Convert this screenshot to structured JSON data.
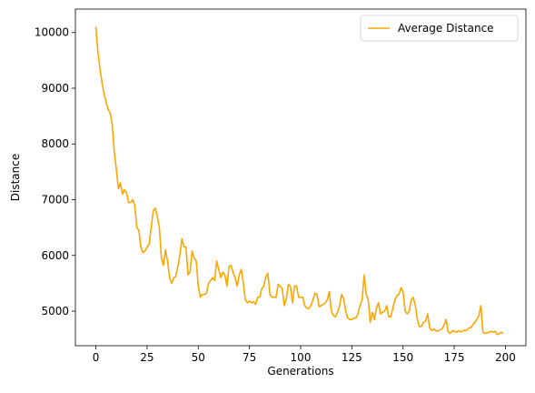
{
  "chart_data": {
    "type": "line",
    "title": "",
    "xlabel": "Generations",
    "ylabel": "Distance",
    "xlim": [
      -10,
      210
    ],
    "ylim": [
      4380,
      10420
    ],
    "xticks": [
      0,
      25,
      50,
      75,
      100,
      125,
      150,
      175,
      200
    ],
    "yticks": [
      5000,
      6000,
      7000,
      8000,
      9000,
      10000
    ],
    "grid": false,
    "legend": {
      "position": "top-right"
    },
    "series": [
      {
        "name": "Average Distance",
        "color": "#FFA500",
        "points": [
          [
            0,
            10100
          ],
          [
            1,
            9650
          ],
          [
            2,
            9350
          ],
          [
            3,
            9100
          ],
          [
            4,
            8900
          ],
          [
            5,
            8750
          ],
          [
            6,
            8620
          ],
          [
            7,
            8550
          ],
          [
            8,
            8350
          ],
          [
            9,
            7850
          ],
          [
            10,
            7550
          ],
          [
            11,
            7200
          ],
          [
            12,
            7300
          ],
          [
            13,
            7100
          ],
          [
            14,
            7180
          ],
          [
            15,
            7120
          ],
          [
            16,
            6950
          ],
          [
            17,
            6950
          ],
          [
            18,
            7000
          ],
          [
            19,
            6900
          ],
          [
            20,
            6500
          ],
          [
            21,
            6450
          ],
          [
            22,
            6150
          ],
          [
            23,
            6050
          ],
          [
            24,
            6080
          ],
          [
            25,
            6150
          ],
          [
            26,
            6200
          ],
          [
            27,
            6500
          ],
          [
            28,
            6800
          ],
          [
            29,
            6850
          ],
          [
            30,
            6700
          ],
          [
            31,
            6500
          ],
          [
            32,
            5950
          ],
          [
            33,
            5820
          ],
          [
            34,
            6100
          ],
          [
            35,
            5900
          ],
          [
            36,
            5600
          ],
          [
            37,
            5500
          ],
          [
            38,
            5600
          ],
          [
            39,
            5620
          ],
          [
            40,
            5800
          ],
          [
            41,
            6000
          ],
          [
            42,
            6300
          ],
          [
            43,
            6150
          ],
          [
            44,
            6150
          ],
          [
            45,
            5650
          ],
          [
            46,
            5700
          ],
          [
            47,
            6080
          ],
          [
            48,
            5950
          ],
          [
            49,
            5900
          ],
          [
            50,
            5450
          ],
          [
            51,
            5250
          ],
          [
            52,
            5300
          ],
          [
            53,
            5300
          ],
          [
            54,
            5320
          ],
          [
            55,
            5500
          ],
          [
            56,
            5550
          ],
          [
            57,
            5600
          ],
          [
            58,
            5550
          ],
          [
            59,
            5900
          ],
          [
            60,
            5750
          ],
          [
            61,
            5600
          ],
          [
            62,
            5700
          ],
          [
            63,
            5650
          ],
          [
            64,
            5450
          ],
          [
            65,
            5800
          ],
          [
            66,
            5820
          ],
          [
            67,
            5700
          ],
          [
            68,
            5600
          ],
          [
            69,
            5450
          ],
          [
            70,
            5650
          ],
          [
            71,
            5750
          ],
          [
            72,
            5500
          ],
          [
            73,
            5200
          ],
          [
            74,
            5150
          ],
          [
            75,
            5180
          ],
          [
            76,
            5150
          ],
          [
            77,
            5170
          ],
          [
            78,
            5120
          ],
          [
            79,
            5250
          ],
          [
            80,
            5250
          ],
          [
            81,
            5400
          ],
          [
            82,
            5450
          ],
          [
            83,
            5620
          ],
          [
            84,
            5680
          ],
          [
            85,
            5300
          ],
          [
            86,
            5250
          ],
          [
            87,
            5250
          ],
          [
            88,
            5250
          ],
          [
            89,
            5480
          ],
          [
            90,
            5450
          ],
          [
            91,
            5400
          ],
          [
            92,
            5100
          ],
          [
            93,
            5220
          ],
          [
            94,
            5480
          ],
          [
            95,
            5450
          ],
          [
            96,
            5150
          ],
          [
            97,
            5450
          ],
          [
            98,
            5450
          ],
          [
            99,
            5250
          ],
          [
            100,
            5250
          ],
          [
            101,
            5250
          ],
          [
            102,
            5100
          ],
          [
            103,
            5050
          ],
          [
            104,
            5050
          ],
          [
            105,
            5100
          ],
          [
            106,
            5200
          ],
          [
            107,
            5320
          ],
          [
            108,
            5300
          ],
          [
            109,
            5080
          ],
          [
            110,
            5100
          ],
          [
            111,
            5120
          ],
          [
            112,
            5150
          ],
          [
            113,
            5200
          ],
          [
            114,
            5350
          ],
          [
            115,
            5000
          ],
          [
            116,
            4920
          ],
          [
            117,
            4900
          ],
          [
            118,
            4980
          ],
          [
            119,
            5100
          ],
          [
            120,
            5300
          ],
          [
            121,
            5220
          ],
          [
            122,
            5000
          ],
          [
            123,
            4880
          ],
          [
            124,
            4850
          ],
          [
            125,
            4850
          ],
          [
            126,
            4870
          ],
          [
            127,
            4880
          ],
          [
            128,
            4950
          ],
          [
            129,
            5100
          ],
          [
            130,
            5200
          ],
          [
            131,
            5650
          ],
          [
            132,
            5300
          ],
          [
            133,
            5200
          ],
          [
            134,
            4800
          ],
          [
            135,
            4980
          ],
          [
            136,
            4850
          ],
          [
            137,
            5050
          ],
          [
            138,
            5150
          ],
          [
            139,
            4950
          ],
          [
            140,
            4980
          ],
          [
            141,
            5000
          ],
          [
            142,
            5100
          ],
          [
            143,
            4900
          ],
          [
            144,
            4900
          ],
          [
            145,
            5050
          ],
          [
            146,
            5200
          ],
          [
            147,
            5280
          ],
          [
            148,
            5300
          ],
          [
            149,
            5420
          ],
          [
            150,
            5350
          ],
          [
            151,
            5000
          ],
          [
            152,
            4950
          ],
          [
            153,
            5000
          ],
          [
            154,
            5200
          ],
          [
            155,
            5250
          ],
          [
            156,
            5100
          ],
          [
            157,
            4850
          ],
          [
            158,
            4720
          ],
          [
            159,
            4730
          ],
          [
            160,
            4800
          ],
          [
            161,
            4820
          ],
          [
            162,
            4950
          ],
          [
            163,
            4700
          ],
          [
            164,
            4650
          ],
          [
            165,
            4680
          ],
          [
            166,
            4650
          ],
          [
            167,
            4640
          ],
          [
            168,
            4660
          ],
          [
            169,
            4680
          ],
          [
            170,
            4750
          ],
          [
            171,
            4850
          ],
          [
            172,
            4630
          ],
          [
            173,
            4600
          ],
          [
            174,
            4650
          ],
          [
            175,
            4640
          ],
          [
            176,
            4620
          ],
          [
            177,
            4650
          ],
          [
            178,
            4630
          ],
          [
            179,
            4640
          ],
          [
            180,
            4660
          ],
          [
            181,
            4650
          ],
          [
            182,
            4700
          ],
          [
            183,
            4700
          ],
          [
            184,
            4750
          ],
          [
            185,
            4800
          ],
          [
            186,
            4850
          ],
          [
            187,
            4920
          ],
          [
            188,
            5100
          ],
          [
            189,
            4620
          ],
          [
            190,
            4600
          ],
          [
            191,
            4610
          ],
          [
            192,
            4620
          ],
          [
            193,
            4640
          ],
          [
            194,
            4620
          ],
          [
            195,
            4640
          ],
          [
            196,
            4580
          ],
          [
            197,
            4600
          ],
          [
            198,
            4620
          ],
          [
            199,
            4600
          ]
        ]
      }
    ]
  }
}
